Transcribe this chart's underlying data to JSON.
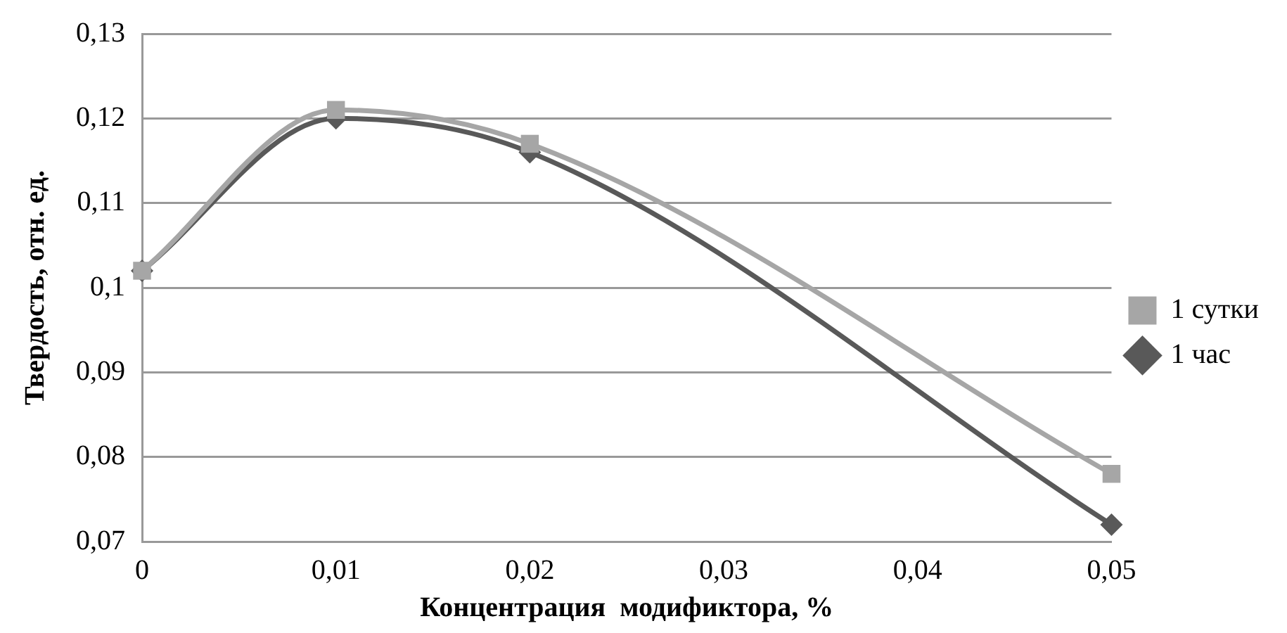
{
  "chart_data": {
    "type": "line",
    "xlabel": "Концентрация  модификтора, %",
    "ylabel": "Твердость, отн. ед.",
    "x": [
      0,
      0.01,
      0.02,
      0.05
    ],
    "series": [
      {
        "name": "1 час",
        "color": "#595959",
        "marker": "diamond",
        "values": [
          0.102,
          0.12,
          0.116,
          0.072
        ]
      },
      {
        "name": "1 сутки",
        "color": "#a6a6a6",
        "marker": "square",
        "values": [
          0.102,
          0.121,
          0.117,
          0.078
        ]
      }
    ],
    "xlim": [
      0,
      0.05
    ],
    "xticks": [
      0,
      {
        "value": 0.01,
        "label": "0,01"
      },
      {
        "value": 0.02,
        "label": "0,02"
      },
      {
        "value": 0.03,
        "label": "0,03"
      },
      {
        "value": 0.04,
        "label": "0,04"
      },
      {
        "value": 0.05,
        "label": "0,05"
      }
    ],
    "ylim": [
      0.07,
      0.13
    ],
    "yticks": [
      {
        "value": 0.07,
        "label": "0,07"
      },
      {
        "value": 0.08,
        "label": "0,08"
      },
      {
        "value": 0.09,
        "label": "0,09"
      },
      {
        "value": 0.1,
        "label": "0,1"
      },
      {
        "value": 0.11,
        "label": "0,11"
      },
      {
        "value": 0.12,
        "label": "0,12"
      },
      {
        "value": 0.13,
        "label": "0,13"
      }
    ],
    "grid": "y",
    "legend": "right",
    "line_style": "solid"
  }
}
